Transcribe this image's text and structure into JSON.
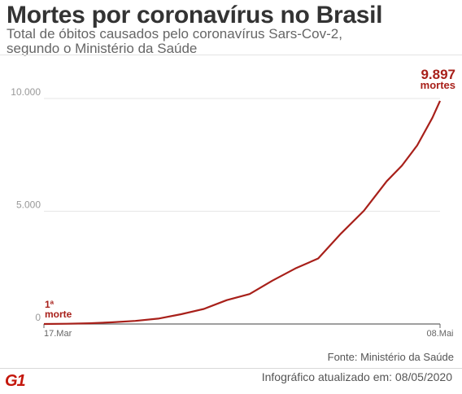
{
  "header": {
    "title": "Mortes por coronavírus no Brasil",
    "subtitle_line1": "Total de óbitos causados pelo coronavírus Sars-Cov-2,",
    "subtitle_line2": "segundo o Ministério da Saúde"
  },
  "chart_data": {
    "type": "line",
    "title": "Mortes por coronavírus no Brasil",
    "xlabel": "",
    "ylabel": "",
    "xlim": [
      "2020-03-17",
      "2020-05-08"
    ],
    "ylim": [
      0,
      10000
    ],
    "x_ticks": [
      "17.Mar",
      "08.Mai"
    ],
    "y_ticks": [
      {
        "value": 10000,
        "label": "10.000"
      },
      {
        "value": 5000,
        "label": "5.000"
      },
      {
        "value": 0,
        "label": "0"
      }
    ],
    "grid": true,
    "line_color": "#a8201a",
    "series": [
      {
        "x": [
          "2020-03-17",
          "2020-03-20",
          "2020-03-23",
          "2020-03-26",
          "2020-03-29",
          "2020-04-01",
          "2020-04-04",
          "2020-04-07",
          "2020-04-10",
          "2020-04-13",
          "2020-04-16",
          "2020-04-19",
          "2020-04-22",
          "2020-04-25",
          "2020-04-28",
          "2020-05-01",
          "2020-05-03",
          "2020-05-05",
          "2020-05-07",
          "2020-05-08"
        ],
        "values": [
          1,
          11,
          34,
          77,
          136,
          240,
          432,
          667,
          1056,
          1328,
          1924,
          2462,
          2906,
          4016,
          5017,
          6329,
          7025,
          7921,
          9146,
          9897
        ]
      }
    ],
    "annotations": {
      "start_number": "1ª",
      "start_unit": "morte",
      "end_number": "9.897",
      "end_unit": "mortes"
    }
  },
  "footer": {
    "source": "Fonte: Ministério da Saúde",
    "logo": "G1",
    "updated": "Infográfico atualizado em: 08/05/2020"
  }
}
